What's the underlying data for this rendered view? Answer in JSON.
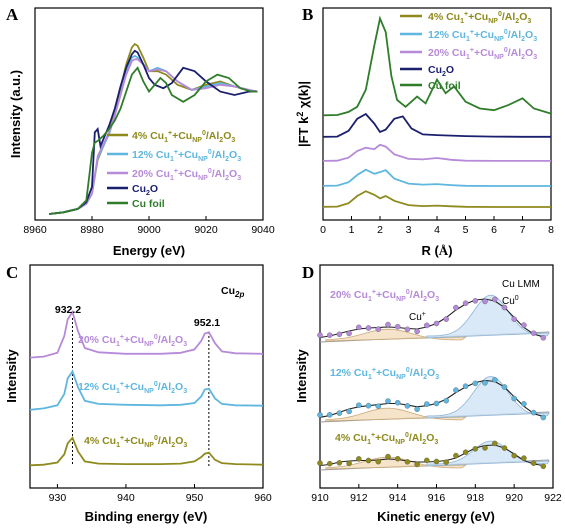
{
  "colors": {
    "olive": "#8f8a1e",
    "lightblue": "#5fb6de",
    "violet": "#b68ad8",
    "navy": "#1a1f6e",
    "green": "#2f7d2a"
  },
  "chart_data": [
    {
      "panel": "A",
      "type": "line",
      "xlabel": "Energy (eV)",
      "ylabel": "Intensity (a.u.)",
      "xlim": [
        8960,
        9040
      ],
      "xticks": [
        "8960",
        "8980",
        "9000",
        "9020",
        "9040"
      ],
      "legend_position": "bottom-right",
      "series": [
        {
          "name": "4% Cu1+ + CuNP0/Al2O3",
          "label_main": "4% Cu",
          "color_key": "olive",
          "x": [
            8965,
            8970,
            8975,
            8978,
            8980,
            8982,
            8984,
            8986,
            8988,
            8990,
            8992,
            8994,
            8995,
            8996,
            8998,
            9000,
            9003,
            9006,
            9010,
            9015,
            9020,
            9025,
            9030,
            9035,
            9038
          ],
          "y": [
            0.0,
            0.01,
            0.03,
            0.06,
            0.12,
            0.32,
            0.4,
            0.48,
            0.6,
            0.74,
            0.88,
            0.98,
            1.0,
            0.99,
            0.92,
            0.84,
            0.84,
            0.82,
            0.76,
            0.73,
            0.76,
            0.78,
            0.75,
            0.73,
            0.72
          ]
        },
        {
          "name": "12% Cu1+ + CuNP0/Al2O3",
          "label_main": "12% Cu",
          "color_key": "lightblue",
          "x": [
            8965,
            8970,
            8975,
            8978,
            8980,
            8982,
            8984,
            8986,
            8988,
            8990,
            8992,
            8994,
            8995,
            8996,
            8998,
            9000,
            9003,
            9006,
            9010,
            9015,
            9020,
            9025,
            9030,
            9035,
            9038
          ],
          "y": [
            0.0,
            0.01,
            0.03,
            0.06,
            0.12,
            0.33,
            0.4,
            0.47,
            0.58,
            0.7,
            0.83,
            0.92,
            0.93,
            0.92,
            0.88,
            0.84,
            0.86,
            0.84,
            0.78,
            0.73,
            0.75,
            0.77,
            0.75,
            0.73,
            0.72
          ]
        },
        {
          "name": "20% Cu1+ + CuNP0/Al2O3",
          "label_main": "20% Cu",
          "color_key": "violet",
          "x": [
            8965,
            8970,
            8975,
            8978,
            8980,
            8982,
            8984,
            8986,
            8988,
            8990,
            8992,
            8994,
            8995,
            8996,
            8998,
            9000,
            9003,
            9006,
            9010,
            9015,
            9020,
            9025,
            9030,
            9035,
            9038
          ],
          "y": [
            0.0,
            0.01,
            0.03,
            0.06,
            0.12,
            0.34,
            0.41,
            0.48,
            0.58,
            0.7,
            0.82,
            0.9,
            0.91,
            0.91,
            0.88,
            0.84,
            0.85,
            0.84,
            0.78,
            0.73,
            0.74,
            0.76,
            0.75,
            0.73,
            0.72
          ]
        },
        {
          "name": "Cu2O",
          "label_main": "Cu",
          "color_key": "navy",
          "x": [
            8965,
            8970,
            8975,
            8978,
            8980,
            8981,
            8982,
            8983,
            8984,
            8986,
            8988,
            8990,
            8992,
            8994,
            8995,
            8996,
            8998,
            9000,
            9002,
            9005,
            9008,
            9012,
            9016,
            9020,
            9025,
            9030,
            9035,
            9038
          ],
          "y": [
            0.0,
            0.01,
            0.03,
            0.07,
            0.16,
            0.48,
            0.5,
            0.4,
            0.44,
            0.52,
            0.62,
            0.75,
            0.86,
            0.94,
            0.96,
            0.95,
            0.88,
            0.8,
            0.76,
            0.74,
            0.77,
            0.86,
            0.84,
            0.78,
            0.72,
            0.7,
            0.72,
            0.72
          ]
        },
        {
          "name": "Cu foil",
          "label_main": "Cu foil",
          "color_key": "green",
          "x": [
            8965,
            8970,
            8975,
            8978,
            8979,
            8980,
            8981,
            8982,
            8984,
            8986,
            8988,
            8990,
            8992,
            8994,
            8996,
            8998,
            9000,
            9002,
            9004,
            9006,
            9008,
            9012,
            9016,
            9020,
            9024,
            9028,
            9032,
            9036,
            9038
          ],
          "y": [
            0.0,
            0.01,
            0.03,
            0.08,
            0.22,
            0.36,
            0.42,
            0.43,
            0.46,
            0.5,
            0.55,
            0.62,
            0.72,
            0.82,
            0.86,
            0.78,
            0.72,
            0.76,
            0.8,
            0.77,
            0.7,
            0.66,
            0.7,
            0.78,
            0.82,
            0.8,
            0.74,
            0.72,
            0.72
          ]
        }
      ]
    },
    {
      "panel": "B",
      "type": "line",
      "xlabel": "R (Å)",
      "xlabel_main": "R (",
      "xlabel_unit": "Å",
      "xlabel_close": ")",
      "ylabel": "|FT k2 χ(k)|",
      "xlim": [
        0,
        8
      ],
      "xticks": [
        "0",
        "1",
        "2",
        "3",
        "4",
        "5",
        "6",
        "7",
        "8"
      ],
      "legend_position": "top-right",
      "series": [
        {
          "name": "4% Cu1+ + CuNP0/Al2O3",
          "color_key": "olive",
          "offset": 0,
          "x": [
            0,
            0.5,
            0.9,
            1.2,
            1.5,
            1.8,
            2.0,
            2.2,
            2.5,
            3.0,
            3.5,
            4.0,
            4.5,
            5.0,
            6.0,
            7.0,
            8.0
          ],
          "y": [
            0.05,
            0.06,
            0.2,
            0.5,
            0.7,
            0.55,
            0.4,
            0.5,
            0.3,
            0.12,
            0.08,
            0.1,
            0.07,
            0.05,
            0.04,
            0.04,
            0.04
          ]
        },
        {
          "name": "12% Cu1+ + CuNP0/Al2O3",
          "color_key": "lightblue",
          "offset": 1,
          "x": [
            0,
            0.5,
            0.9,
            1.2,
            1.5,
            1.8,
            2.0,
            2.2,
            2.5,
            3.0,
            3.5,
            4.0,
            4.5,
            5.0,
            6.0,
            7.0,
            8.0
          ],
          "y": [
            0.05,
            0.06,
            0.2,
            0.5,
            0.72,
            0.55,
            0.62,
            0.7,
            0.35,
            0.14,
            0.1,
            0.12,
            0.08,
            0.05,
            0.04,
            0.04,
            0.04
          ]
        },
        {
          "name": "20% Cu1+ + CuNP0/Al2O3",
          "color_key": "violet",
          "offset": 2,
          "x": [
            0,
            0.5,
            0.9,
            1.2,
            1.5,
            1.8,
            2.0,
            2.2,
            2.5,
            3.0,
            3.5,
            4.0,
            4.5,
            5.0,
            6.0,
            7.0,
            8.0
          ],
          "y": [
            0.05,
            0.06,
            0.2,
            0.5,
            0.65,
            0.58,
            0.78,
            0.7,
            0.35,
            0.14,
            0.12,
            0.18,
            0.1,
            0.06,
            0.05,
            0.05,
            0.05
          ]
        },
        {
          "name": "Cu2O",
          "color_key": "navy",
          "offset": 3,
          "x": [
            0,
            0.5,
            0.9,
            1.2,
            1.5,
            1.8,
            2.0,
            2.2,
            2.5,
            2.8,
            3.1,
            3.5,
            4.0,
            4.5,
            5.0,
            6.0,
            7.0,
            8.0
          ],
          "y": [
            0.05,
            0.06,
            0.3,
            0.8,
            1.0,
            0.6,
            0.25,
            0.35,
            0.8,
            0.9,
            0.4,
            0.15,
            0.12,
            0.1,
            0.08,
            0.06,
            0.05,
            0.05
          ]
        },
        {
          "name": "Cu foil",
          "color_key": "green",
          "offset": 4,
          "x": [
            0,
            0.5,
            0.9,
            1.2,
            1.5,
            1.8,
            2.0,
            2.2,
            2.4,
            2.6,
            2.9,
            3.3,
            3.6,
            4.0,
            4.3,
            4.6,
            5.0,
            5.5,
            6.0,
            6.5,
            7.0,
            7.4,
            8.0
          ],
          "y": [
            0.05,
            0.06,
            0.15,
            0.3,
            0.8,
            2.1,
            2.9,
            2.5,
            1.2,
            0.5,
            0.3,
            0.6,
            0.4,
            1.1,
            0.7,
            0.9,
            0.45,
            0.25,
            0.2,
            0.35,
            0.55,
            0.25,
            0.1
          ]
        }
      ]
    },
    {
      "panel": "C",
      "type": "line",
      "title": "Cu2p",
      "xlabel": "Binding energy (eV)",
      "ylabel": "Intensity",
      "xlim": [
        926,
        960
      ],
      "xticks": [
        "930",
        "940",
        "950",
        "960"
      ],
      "annotations": [
        "932.2",
        "952.1"
      ],
      "series": [
        {
          "name": "4% Cu1+ + CuNP0/Al2O3",
          "color_key": "olive",
          "offset": 0,
          "x": [
            926,
            928,
            930,
            931,
            931.5,
            932.2,
            933,
            934,
            936,
            940,
            945,
            948,
            950,
            951,
            951.5,
            952.1,
            953,
            954,
            956,
            960
          ],
          "y": [
            0.05,
            0.06,
            0.1,
            0.25,
            0.45,
            0.55,
            0.3,
            0.12,
            0.08,
            0.07,
            0.07,
            0.08,
            0.12,
            0.2,
            0.26,
            0.28,
            0.15,
            0.09,
            0.07,
            0.06
          ]
        },
        {
          "name": "12% Cu1+ + CuNP0/Al2O3",
          "color_key": "lightblue",
          "offset": 1,
          "x": [
            926,
            928,
            930,
            931,
            931.5,
            932.2,
            933,
            934,
            936,
            940,
            945,
            948,
            950,
            951,
            951.5,
            952.1,
            953,
            954,
            956,
            960
          ],
          "y": [
            0.05,
            0.08,
            0.15,
            0.4,
            0.75,
            0.9,
            0.55,
            0.25,
            0.18,
            0.16,
            0.15,
            0.16,
            0.2,
            0.35,
            0.5,
            0.52,
            0.3,
            0.18,
            0.15,
            0.14
          ]
        },
        {
          "name": "20% Cu1+ + CuNP0/Al2O3",
          "color_key": "violet",
          "offset": 2,
          "x": [
            926,
            928,
            930,
            931,
            931.5,
            932.2,
            933,
            934,
            936,
            940,
            945,
            948,
            950,
            951,
            951.5,
            952.1,
            953,
            954,
            956,
            960
          ],
          "y": [
            0.05,
            0.07,
            0.15,
            0.5,
            0.85,
            1.0,
            0.6,
            0.25,
            0.16,
            0.13,
            0.13,
            0.15,
            0.22,
            0.4,
            0.55,
            0.58,
            0.35,
            0.18,
            0.14,
            0.13
          ]
        }
      ]
    },
    {
      "panel": "D",
      "type": "scatter",
      "title": "Cu LMM",
      "xlabel": "Kinetic energy (eV)",
      "ylabel": "Intensity",
      "xlim": [
        910,
        922
      ],
      "xticks": [
        "910",
        "912",
        "914",
        "916",
        "918",
        "920",
        "922"
      ],
      "annotations": [
        "Cu+",
        "Cu0"
      ],
      "series": [
        {
          "name": "4% Cu1+ + CuNP0/Al2O3",
          "color_key": "olive",
          "offset": 0,
          "x": [
            910,
            910.5,
            911,
            911.5,
            912,
            912.5,
            913,
            913.5,
            914,
            914.5,
            915,
            915.5,
            916,
            916.5,
            917,
            917.5,
            918,
            918.5,
            919,
            919.5,
            920,
            920.5,
            921,
            921.5
          ],
          "y": [
            0.05,
            0.07,
            0.12,
            0.14,
            0.15,
            0.15,
            0.16,
            0.18,
            0.17,
            0.14,
            0.12,
            0.12,
            0.13,
            0.15,
            0.2,
            0.3,
            0.4,
            0.45,
            0.46,
            0.4,
            0.28,
            0.15,
            0.08,
            0.05
          ]
        },
        {
          "name": "12% Cu1+ + CuNP0/Al2O3",
          "color_key": "lightblue",
          "offset": 1,
          "x": [
            910,
            910.5,
            911,
            911.5,
            912,
            912.5,
            913,
            913.5,
            914,
            914.5,
            915,
            915.5,
            916,
            916.5,
            917,
            917.5,
            918,
            918.5,
            919,
            919.5,
            920,
            920.5,
            921,
            921.5
          ],
          "y": [
            0.05,
            0.08,
            0.14,
            0.2,
            0.24,
            0.26,
            0.28,
            0.3,
            0.3,
            0.27,
            0.24,
            0.26,
            0.3,
            0.38,
            0.5,
            0.6,
            0.68,
            0.72,
            0.7,
            0.6,
            0.42,
            0.25,
            0.12,
            0.06
          ]
        },
        {
          "name": "20% Cu1+ + CuNP0/Al2O3",
          "color_key": "violet",
          "offset": 2,
          "x": [
            910,
            910.5,
            911,
            911.5,
            912,
            912.5,
            913,
            913.5,
            914,
            914.5,
            915,
            915.5,
            916,
            916.5,
            917,
            917.5,
            918,
            918.5,
            919,
            919.5,
            920,
            920.5,
            921,
            921.5
          ],
          "y": [
            0.05,
            0.08,
            0.13,
            0.18,
            0.22,
            0.24,
            0.25,
            0.26,
            0.25,
            0.23,
            0.22,
            0.26,
            0.33,
            0.45,
            0.6,
            0.72,
            0.8,
            0.82,
            0.78,
            0.65,
            0.45,
            0.25,
            0.12,
            0.06
          ]
        }
      ]
    }
  ]
}
